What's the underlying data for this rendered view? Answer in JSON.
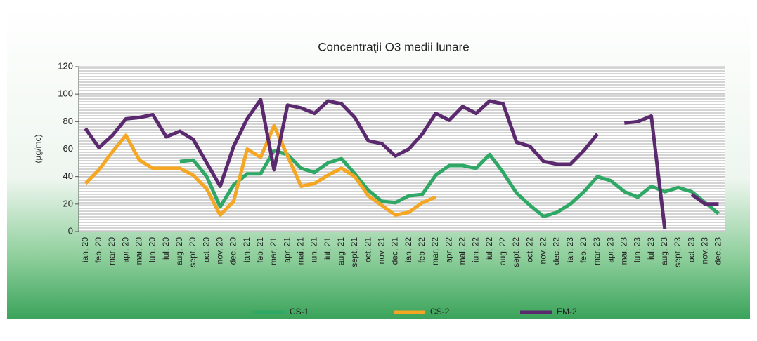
{
  "chart_data": {
    "type": "line",
    "title": "Concentraţii O3 medii lunare",
    "y_label": "(µg/mc)",
    "categories": [
      "ian, 20",
      "feb, 20",
      "mar, 20",
      "apr, 20",
      "mai, 20",
      "iun, 20",
      "iul, 20",
      "aug, 20",
      "sept, 20",
      "oct, 20",
      "nov, 20",
      "dec, 20",
      "ian, 21",
      "feb, 21",
      "mar, 21",
      "apr, 21",
      "mai, 21",
      "iun, 21",
      "iul, 21",
      "aug, 21",
      "sept, 21",
      "oct, 21",
      "nov, 21",
      "dec, 21",
      "ian, 22",
      "feb, 22",
      "mar, 22",
      "apr, 22",
      "mai, 22",
      "iun, 22",
      "iul, 22",
      "aug, 22",
      "sept, 22",
      "oct, 22",
      "nov, 22",
      "dec, 22",
      "ian, 23",
      "feb, 23",
      "mar, 23",
      "apr, 23",
      "mai, 23",
      "iun, 23",
      "iul, 23",
      "aug, 23",
      "sept, 23",
      "oct, 23",
      "nov, 23",
      "dec, 23"
    ],
    "series": [
      {
        "name": "CS-1",
        "color": "#2fa866",
        "values": [
          null,
          null,
          null,
          null,
          null,
          null,
          null,
          51,
          52,
          40,
          18,
          34,
          42,
          42,
          59,
          56,
          46,
          43,
          50,
          53,
          42,
          30,
          22,
          21,
          26,
          27,
          41,
          48,
          48,
          46,
          56,
          43,
          28,
          19,
          11,
          14,
          20,
          29,
          40,
          37,
          29,
          25,
          33,
          29,
          32,
          29,
          21,
          13
        ]
      },
      {
        "name": "CS-2",
        "color": "#f5a623",
        "values": [
          35,
          45,
          58,
          70,
          52,
          46,
          46,
          46,
          41,
          31,
          12,
          22,
          60,
          54,
          77,
          55,
          33,
          35,
          41,
          46,
          40,
          26,
          19,
          12,
          14,
          21,
          25,
          null,
          null,
          null,
          null,
          null,
          null,
          null,
          null,
          null,
          null,
          null,
          null,
          null,
          null,
          null,
          null,
          null,
          null,
          null,
          null,
          null
        ]
      },
      {
        "name": "EM-2",
        "color": "#5b2a6e",
        "values": [
          75,
          61,
          70,
          82,
          83,
          85,
          69,
          73,
          67,
          50,
          33,
          62,
          82,
          96,
          45,
          92,
          90,
          86,
          95,
          93,
          83,
          66,
          64,
          55,
          60,
          71,
          86,
          81,
          91,
          86,
          95,
          93,
          65,
          62,
          51,
          49,
          49,
          59,
          71,
          null,
          79,
          80,
          84,
          2,
          null,
          27,
          20,
          20
        ]
      }
    ],
    "ylim": [
      0,
      120
    ],
    "yticks": [
      0,
      20,
      40,
      60,
      80,
      100,
      120
    ],
    "grid": true,
    "legend": "bottom"
  }
}
